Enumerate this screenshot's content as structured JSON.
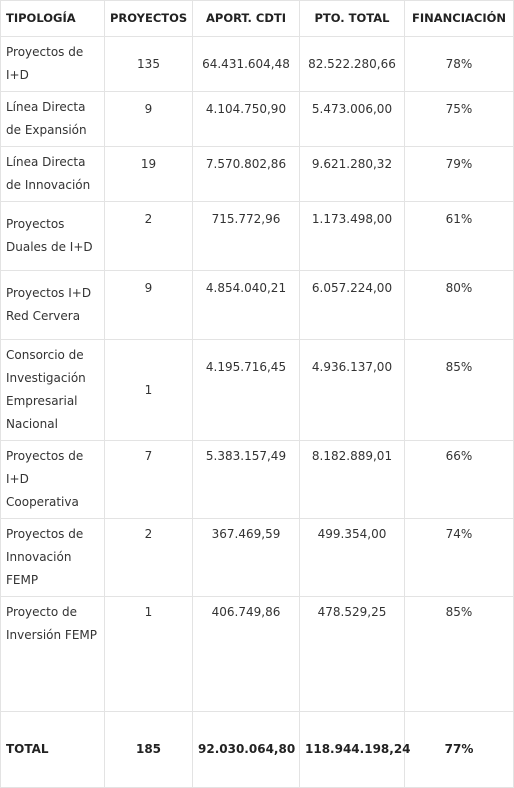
{
  "table": {
    "headers": {
      "tipologia": "TIPOLOGÍA",
      "proyectos": "PROYECTOS",
      "aportacion": "APORT. CDTI",
      "presupuesto": "PTO. TOTAL",
      "financiacion": "FINANCIACIÓN"
    },
    "rows": [
      {
        "tipologia": "Proyectos de I+D",
        "proyectos": "135",
        "aportacion": "64.431.604,48",
        "presupuesto": "82.522.280,66",
        "financiacion": "78%"
      },
      {
        "tipologia": "Línea Directa de Expansión",
        "proyectos": "9",
        "aportacion": "4.104.750,90",
        "presupuesto": "5.473.006,00",
        "financiacion": "75%"
      },
      {
        "tipologia": "Línea Directa de Innovación",
        "proyectos": "19",
        "aportacion": "7.570.802,86",
        "presupuesto": "9.621.280,32",
        "financiacion": "79%"
      },
      {
        "tipologia": "Proyectos Duales de I+D",
        "proyectos": "2",
        "aportacion": "715.772,96",
        "presupuesto": "1.173.498,00",
        "financiacion": "61%"
      },
      {
        "tipologia": "Proyectos I+D Red Cervera",
        "proyectos": "9",
        "aportacion": "4.854.040,21",
        "presupuesto": "6.057.224,00",
        "financiacion": "80%"
      },
      {
        "tipologia": "Consorcio de Investigación Empresarial Nacional",
        "proyectos": "1",
        "aportacion": "4.195.716,45",
        "presupuesto": "4.936.137,00",
        "financiacion": "85%"
      },
      {
        "tipologia": "Proyectos de I+D Cooperativa",
        "proyectos": "7",
        "aportacion": "5.383.157,49",
        "presupuesto": "8.182.889,01",
        "financiacion": "66%"
      },
      {
        "tipologia": "Proyectos de Innovación FEMP",
        "proyectos": "2",
        "aportacion": "367.469,59",
        "presupuesto": "499.354,00",
        "financiacion": "74%"
      },
      {
        "tipologia": "Proyecto de Inversión FEMP",
        "proyectos": "1",
        "aportacion": "406.749,86",
        "presupuesto": "478.529,25",
        "financiacion": "85%"
      }
    ],
    "total": {
      "tipologia": "TOTAL",
      "proyectos": "185",
      "aportacion": "92.030.064,80",
      "presupuesto": "118.944.198,24",
      "financiacion": "77%"
    }
  }
}
